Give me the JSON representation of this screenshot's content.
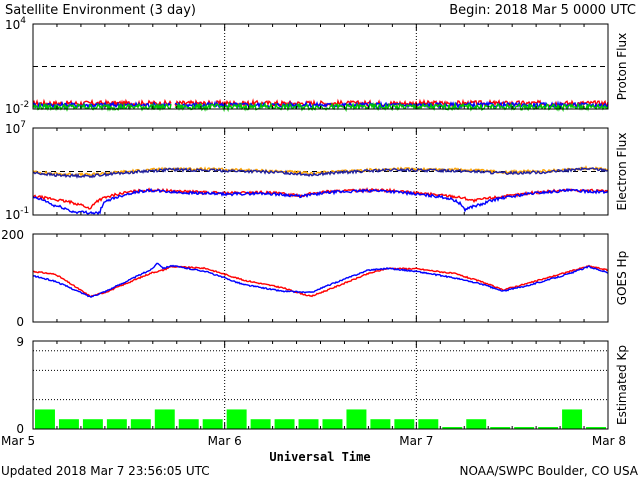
{
  "header": {
    "title": "Satellite Environment (3 day)",
    "begin": "Begin:  2018 Mar 5 0000 UTC"
  },
  "footer": {
    "updated": "Updated 2018 Mar  7 23:56:05 UTC",
    "credit": "NOAA/SWPC Boulder, CO USA",
    "xlabel": "Universal Time"
  },
  "chart_data": [
    {
      "type": "line",
      "ylabel": "Proton Flux",
      "yscale": "log",
      "ylim": [
        0.01,
        10000
      ],
      "y_ticks": [
        {
          "base": "10",
          "exp": "4"
        },
        {
          "base": "10",
          "exp": "-2"
        }
      ],
      "threshold": 10,
      "x_range_days": [
        0,
        3
      ],
      "gap_days": [
        0.72,
        0.74
      ],
      "series": [
        {
          "color": "#ff0000",
          "level": 0.025,
          "noise": 0.18
        },
        {
          "color": "#0000ff",
          "level": 0.019,
          "noise": 0.16
        },
        {
          "color": "#00c800",
          "level": 0.014,
          "noise": 0.2
        }
      ]
    },
    {
      "type": "line",
      "ylabel": "Electron Flux",
      "yscale": "log",
      "ylim": [
        0.1,
        10000000
      ],
      "y_ticks": [
        {
          "base": "10",
          "exp": "7"
        },
        {
          "base": "10",
          "exp": "-1"
        }
      ],
      "threshold": 1000,
      "x_range_days": [
        0,
        3
      ],
      "series": [
        {
          "color": "#ffa500",
          "points": [
            [
              0,
              900
            ],
            [
              0.12,
              600
            ],
            [
              0.3,
              500
            ],
            [
              0.5,
              1000
            ],
            [
              0.72,
              1800
            ],
            [
              1.0,
              1500
            ],
            [
              1.3,
              1000
            ],
            [
              1.45,
              650
            ],
            [
              1.6,
              1000
            ],
            [
              1.9,
              1700
            ],
            [
              2.2,
              1500
            ],
            [
              2.45,
              900
            ],
            [
              2.7,
              1100
            ],
            [
              2.9,
              2100
            ],
            [
              3.0,
              1500
            ]
          ]
        },
        {
          "color": "#2020a0",
          "points": [
            [
              0,
              750
            ],
            [
              0.12,
              450
            ],
            [
              0.3,
              380
            ],
            [
              0.5,
              800
            ],
            [
              0.72,
              1500
            ],
            [
              1.0,
              1200
            ],
            [
              1.3,
              800
            ],
            [
              1.45,
              500
            ],
            [
              1.6,
              800
            ],
            [
              1.9,
              1400
            ],
            [
              2.2,
              1200
            ],
            [
              2.45,
              700
            ],
            [
              2.7,
              900
            ],
            [
              2.9,
              1800
            ],
            [
              3.0,
              1300
            ]
          ]
        },
        {
          "color": "#ff0000",
          "points": [
            [
              0,
              5
            ],
            [
              0.15,
              2
            ],
            [
              0.3,
              0.3
            ],
            [
              0.4,
              5
            ],
            [
              0.6,
              20
            ],
            [
              0.75,
              15
            ],
            [
              1.0,
              10
            ],
            [
              1.2,
              12
            ],
            [
              1.4,
              6
            ],
            [
              1.55,
              15
            ],
            [
              1.8,
              20
            ],
            [
              2.0,
              10
            ],
            [
              2.2,
              5
            ],
            [
              2.3,
              2
            ],
            [
              2.5,
              6
            ],
            [
              2.8,
              20
            ],
            [
              3.0,
              15
            ]
          ]
        },
        {
          "color": "#0000ff",
          "points": [
            [
              0,
              4
            ],
            [
              0.1,
              0.8
            ],
            [
              0.2,
              0.2
            ],
            [
              0.35,
              0.15
            ],
            [
              0.45,
              5
            ],
            [
              0.6,
              18
            ],
            [
              0.75,
              12
            ],
            [
              1.0,
              8
            ],
            [
              1.2,
              10
            ],
            [
              1.4,
              5
            ],
            [
              1.55,
              12
            ],
            [
              1.8,
              18
            ],
            [
              2.0,
              8
            ],
            [
              2.15,
              4
            ],
            [
              2.25,
              0.3
            ],
            [
              2.35,
              1
            ],
            [
              2.5,
              5
            ],
            [
              2.8,
              18
            ],
            [
              3.0,
              12
            ]
          ]
        }
      ]
    },
    {
      "type": "line",
      "ylabel": "GOES Hp",
      "ylim": [
        0,
        200
      ],
      "y_ticks": [
        "200",
        "0"
      ],
      "x_range_days": [
        0,
        3
      ],
      "series": [
        {
          "color": "#ff0000",
          "points": [
            [
              0,
              115
            ],
            [
              0.12,
              108
            ],
            [
              0.3,
              58
            ],
            [
              0.38,
              68
            ],
            [
              0.5,
              90
            ],
            [
              0.62,
              112
            ],
            [
              0.68,
              118
            ],
            [
              0.72,
              126
            ],
            [
              0.9,
              122
            ],
            [
              1.1,
              95
            ],
            [
              1.3,
              78
            ],
            [
              1.45,
              58
            ],
            [
              1.55,
              75
            ],
            [
              1.75,
              110
            ],
            [
              1.85,
              122
            ],
            [
              2.0,
              121
            ],
            [
              2.2,
              110
            ],
            [
              2.35,
              90
            ],
            [
              2.45,
              73
            ],
            [
              2.6,
              90
            ],
            [
              2.8,
              115
            ],
            [
              2.9,
              127
            ],
            [
              3.0,
              118
            ]
          ]
        },
        {
          "color": "#0000ff",
          "points": [
            [
              0,
              105
            ],
            [
              0.12,
              92
            ],
            [
              0.3,
              57
            ],
            [
              0.38,
              70
            ],
            [
              0.5,
              95
            ],
            [
              0.62,
              120
            ],
            [
              0.65,
              135
            ],
            [
              0.68,
              122
            ],
            [
              0.72,
              128
            ],
            [
              0.9,
              115
            ],
            [
              1.1,
              85
            ],
            [
              1.3,
              70
            ],
            [
              1.45,
              67
            ],
            [
              1.55,
              85
            ],
            [
              1.75,
              118
            ],
            [
              1.85,
              122
            ],
            [
              2.0,
              115
            ],
            [
              2.2,
              100
            ],
            [
              2.35,
              85
            ],
            [
              2.45,
              70
            ],
            [
              2.6,
              85
            ],
            [
              2.8,
              110
            ],
            [
              2.9,
              126
            ],
            [
              3.0,
              112
            ]
          ]
        }
      ]
    },
    {
      "type": "bar",
      "ylabel": "Estimated Kp",
      "ylim": [
        0,
        9
      ],
      "y_ticks": [
        "9",
        "0"
      ],
      "x_range_days": [
        0,
        3
      ],
      "values": [
        2,
        1,
        1,
        1,
        1,
        2,
        1,
        1,
        2,
        1,
        1,
        1,
        1,
        2,
        1,
        1,
        1,
        0,
        1,
        0,
        0,
        0,
        2,
        0
      ],
      "x_ticks": [
        "Mar 5",
        "Mar 6",
        "Mar 7",
        "Mar 8"
      ],
      "bar_color": "#00ff00"
    }
  ]
}
